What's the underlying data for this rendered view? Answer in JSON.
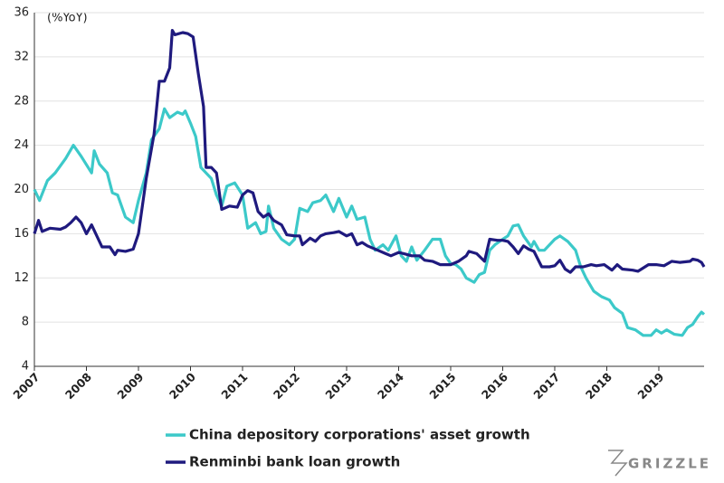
{
  "chart_data": {
    "type": "line",
    "y_label": "(%YoY)",
    "logo": "GRIZZLE",
    "xlim": [
      2007,
      2019.87
    ],
    "xticks": [
      2007,
      2008,
      2009,
      2010,
      2011,
      2012,
      2013,
      2014,
      2015,
      2016,
      2017,
      2018,
      2019
    ],
    "ylim": [
      4,
      36
    ],
    "yticks": [
      4,
      8,
      12,
      16,
      20,
      24,
      28,
      32,
      36
    ],
    "grid": true,
    "legend": "bottom",
    "series": [
      {
        "name": "China depository corporations' asset growth",
        "color": "#3cc9c9",
        "x": [
          2007.0,
          2007.1,
          2007.25,
          2007.4,
          2007.6,
          2007.75,
          2007.9,
          2008.1,
          2008.15,
          2008.25,
          2008.4,
          2008.5,
          2008.6,
          2008.75,
          2008.9,
          2009.0,
          2009.15,
          2009.25,
          2009.4,
          2009.5,
          2009.6,
          2009.75,
          2009.85,
          2009.9,
          2010.0,
          2010.1,
          2010.2,
          2010.3,
          2010.4,
          2010.5,
          2010.6,
          2010.7,
          2010.85,
          2011.0,
          2011.1,
          2011.25,
          2011.35,
          2011.45,
          2011.5,
          2011.6,
          2011.75,
          2011.9,
          2012.0,
          2012.1,
          2012.25,
          2012.35,
          2012.5,
          2012.6,
          2012.75,
          2012.85,
          2013.0,
          2013.1,
          2013.2,
          2013.35,
          2013.45,
          2013.55,
          2013.7,
          2013.8,
          2013.95,
          2014.05,
          2014.15,
          2014.25,
          2014.35,
          2014.5,
          2014.65,
          2014.8,
          2014.9,
          2015.0,
          2015.1,
          2015.2,
          2015.3,
          2015.45,
          2015.55,
          2015.65,
          2015.75,
          2015.85,
          2016.0,
          2016.1,
          2016.2,
          2016.3,
          2016.4,
          2016.55,
          2016.6,
          2016.7,
          2016.8,
          2017.0,
          2017.1,
          2017.25,
          2017.4,
          2017.5,
          2017.6,
          2017.75,
          2017.9,
          2018.05,
          2018.15,
          2018.3,
          2018.4,
          2018.55,
          2018.7,
          2018.85,
          2018.95,
          2019.05,
          2019.15,
          2019.3,
          2019.45,
          2019.55,
          2019.65,
          2019.75,
          2019.82,
          2019.87
        ],
        "values": [
          20,
          19,
          20.8,
          21.5,
          22.8,
          24,
          23,
          21.5,
          23.5,
          22.3,
          21.5,
          19.7,
          19.5,
          17.5,
          17,
          19,
          21.5,
          24.5,
          25.5,
          27.3,
          26.5,
          27,
          26.8,
          27.1,
          26,
          24.8,
          22,
          21.5,
          21,
          19.5,
          18.5,
          20.3,
          20.6,
          19.5,
          16.5,
          17,
          16,
          16.2,
          18.5,
          16.5,
          15.5,
          15,
          15.5,
          18.3,
          18,
          18.8,
          19,
          19.5,
          18,
          19.2,
          17.5,
          18.5,
          17.3,
          17.5,
          15.5,
          14.5,
          15,
          14.5,
          15.8,
          14,
          13.5,
          14.8,
          13.6,
          14.5,
          15.5,
          15.5,
          14,
          13.3,
          13.2,
          12.8,
          12,
          11.6,
          12.3,
          12.5,
          14.5,
          15,
          15.5,
          15.8,
          16.7,
          16.8,
          15.8,
          14.8,
          15.3,
          14.5,
          14.5,
          15.5,
          15.8,
          15.3,
          14.5,
          13,
          12,
          10.8,
          10.3,
          10,
          9.3,
          8.8,
          7.5,
          7.3,
          6.8,
          6.8,
          7.3,
          7,
          7.3,
          6.9,
          6.8,
          7.5,
          7.8,
          8.5,
          8.9,
          8.7
        ]
      },
      {
        "name": "Renminbi bank loan growth",
        "color": "#1f1a7e",
        "x": [
          2007.0,
          2007.08,
          2007.15,
          2007.3,
          2007.5,
          2007.6,
          2007.7,
          2007.8,
          2007.9,
          2008.0,
          2008.1,
          2008.3,
          2008.45,
          2008.55,
          2008.6,
          2008.75,
          2008.9,
          2009.0,
          2009.15,
          2009.3,
          2009.4,
          2009.5,
          2009.6,
          2009.65,
          2009.7,
          2009.85,
          2009.95,
          2010.05,
          2010.15,
          2010.25,
          2010.3,
          2010.4,
          2010.5,
          2010.6,
          2010.75,
          2010.9,
          2011.0,
          2011.1,
          2011.2,
          2011.3,
          2011.4,
          2011.5,
          2011.6,
          2011.75,
          2011.85,
          2012.0,
          2012.1,
          2012.15,
          2012.3,
          2012.4,
          2012.5,
          2012.6,
          2012.75,
          2012.85,
          2013.0,
          2013.1,
          2013.2,
          2013.3,
          2013.4,
          2013.6,
          2013.75,
          2013.85,
          2014.0,
          2014.1,
          2014.25,
          2014.4,
          2014.5,
          2014.65,
          2014.8,
          2015.0,
          2015.15,
          2015.3,
          2015.35,
          2015.5,
          2015.65,
          2015.75,
          2015.9,
          2016.0,
          2016.1,
          2016.2,
          2016.3,
          2016.4,
          2016.5,
          2016.6,
          2016.75,
          2016.9,
          2017.0,
          2017.1,
          2017.2,
          2017.3,
          2017.4,
          2017.55,
          2017.7,
          2017.8,
          2017.95,
          2018.1,
          2018.2,
          2018.3,
          2018.5,
          2018.6,
          2018.8,
          2018.95,
          2019.1,
          2019.25,
          2019.4,
          2019.6,
          2019.65,
          2019.75,
          2019.82,
          2019.87
        ],
        "values": [
          16,
          17.2,
          16.2,
          16.5,
          16.4,
          16.6,
          17,
          17.5,
          17,
          16,
          16.8,
          14.8,
          14.8,
          14.1,
          14.5,
          14.4,
          14.6,
          16,
          21,
          25,
          29.8,
          29.8,
          31,
          34.4,
          34,
          34.2,
          34.1,
          33.8,
          30.5,
          27.5,
          22,
          22,
          21.5,
          18.2,
          18.5,
          18.4,
          19.5,
          19.9,
          19.7,
          18,
          17.5,
          17.8,
          17.2,
          16.8,
          15.9,
          15.8,
          15.8,
          15,
          15.6,
          15.3,
          15.8,
          16,
          16.1,
          16.2,
          15.8,
          16,
          15,
          15.2,
          14.9,
          14.5,
          14.2,
          14,
          14.3,
          14.2,
          14,
          14,
          13.6,
          13.5,
          13.2,
          13.2,
          13.5,
          14,
          14.4,
          14.2,
          13.5,
          15.5,
          15.4,
          15.4,
          15.3,
          14.8,
          14.2,
          14.9,
          14.6,
          14.4,
          13,
          13,
          13.1,
          13.6,
          12.8,
          12.5,
          13,
          13,
          13.2,
          13.1,
          13.2,
          12.7,
          13.2,
          12.8,
          12.7,
          12.6,
          13.2,
          13.2,
          13.1,
          13.5,
          13.4,
          13.5,
          13.7,
          13.6,
          13.4,
          13
        ]
      }
    ]
  }
}
